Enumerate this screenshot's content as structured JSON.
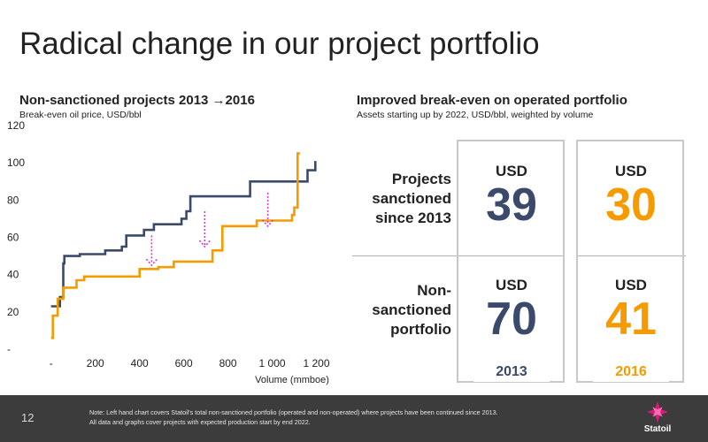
{
  "slide": {
    "title": "Radical change in our project portfolio",
    "page_number": "12"
  },
  "left_panel": {
    "heading": "Non-sanctioned projects 2013 →2016",
    "caption": "Break-even oil price, USD/bbl"
  },
  "right_panel": {
    "heading": "Improved break-even on operated portfolio",
    "caption": "Assets starting up by 2022, USD/bbl, weighted by volume",
    "rows": [
      {
        "label_lines": [
          "Projects",
          "sanctioned",
          "since 2013"
        ]
      },
      {
        "label_lines": [
          "Non-",
          "sanctioned",
          "portfolio"
        ]
      }
    ],
    "columns": [
      {
        "year": "2013",
        "color": "#3b4a6b",
        "values": [
          {
            "unit": "USD",
            "value": "39"
          },
          {
            "unit": "USD",
            "value": "70"
          }
        ]
      },
      {
        "year": "2016",
        "color": "#f59b00",
        "values": [
          {
            "unit": "USD",
            "value": "30"
          },
          {
            "unit": "USD",
            "value": "41"
          }
        ]
      }
    ]
  },
  "chart_data": {
    "type": "line",
    "step": true,
    "xlabel": "Volume (mmboe)",
    "ylabel": "",
    "xlim": [
      -55,
      1290
    ],
    "ylim": [
      0,
      120
    ],
    "x_ticks": [
      {
        "value": 0,
        "label": "-"
      },
      {
        "value": 200,
        "label": "200"
      },
      {
        "value": 400,
        "label": "400"
      },
      {
        "value": 600,
        "label": "600"
      },
      {
        "value": 800,
        "label": "800"
      },
      {
        "value": 1000,
        "label": "1 000"
      },
      {
        "value": 1200,
        "label": "1 200"
      }
    ],
    "y_ticks": [
      {
        "value": 0,
        "label": "-"
      },
      {
        "value": 20,
        "label": "20"
      },
      {
        "value": 40,
        "label": "40"
      },
      {
        "value": 60,
        "label": "60"
      },
      {
        "value": 80,
        "label": "80"
      },
      {
        "value": 100,
        "label": "100"
      },
      {
        "value": 120,
        "label": "120"
      }
    ],
    "grid": false,
    "legend": "none",
    "series": [
      {
        "color": "#3b4a6b",
        "points": [
          [
            0,
            23
          ],
          [
            40,
            23
          ],
          [
            40,
            28
          ],
          [
            55,
            28
          ],
          [
            55,
            46
          ],
          [
            60,
            46
          ],
          [
            60,
            50
          ],
          [
            130,
            50
          ],
          [
            130,
            51
          ],
          [
            245,
            51
          ],
          [
            245,
            53
          ],
          [
            320,
            53
          ],
          [
            320,
            55
          ],
          [
            340,
            55
          ],
          [
            340,
            61
          ],
          [
            420,
            61
          ],
          [
            420,
            64
          ],
          [
            465,
            64
          ],
          [
            465,
            67
          ],
          [
            590,
            67
          ],
          [
            590,
            70
          ],
          [
            612,
            70
          ],
          [
            612,
            74
          ],
          [
            630,
            74
          ],
          [
            630,
            82
          ],
          [
            900,
            82
          ],
          [
            900,
            90
          ],
          [
            1160,
            90
          ],
          [
            1160,
            96
          ],
          [
            1195,
            96
          ],
          [
            1195,
            101
          ]
        ]
      },
      {
        "color": "#f59b00",
        "points": [
          [
            0,
            6
          ],
          [
            8,
            6
          ],
          [
            8,
            18
          ],
          [
            30,
            18
          ],
          [
            30,
            27
          ],
          [
            55,
            27
          ],
          [
            55,
            33
          ],
          [
            115,
            33
          ],
          [
            115,
            37
          ],
          [
            150,
            37
          ],
          [
            150,
            39
          ],
          [
            400,
            39
          ],
          [
            400,
            43
          ],
          [
            485,
            43
          ],
          [
            485,
            44
          ],
          [
            555,
            44
          ],
          [
            555,
            47
          ],
          [
            730,
            47
          ],
          [
            730,
            53
          ],
          [
            775,
            53
          ],
          [
            775,
            66
          ],
          [
            930,
            66
          ],
          [
            930,
            69
          ],
          [
            1090,
            69
          ],
          [
            1090,
            72
          ],
          [
            1100,
            72
          ],
          [
            1100,
            76
          ],
          [
            1115,
            76
          ],
          [
            1115,
            105
          ],
          [
            1125,
            105
          ]
        ]
      }
    ],
    "annotations": [
      {
        "type": "arrow",
        "x": 455,
        "from": 61,
        "to": 45,
        "color": "#e033c8"
      },
      {
        "type": "arrow",
        "x": 695,
        "from": 74,
        "to": 55,
        "color": "#e033c8"
      },
      {
        "type": "arrow",
        "x": 980,
        "from": 84,
        "to": 66,
        "color": "#e033c8"
      }
    ]
  },
  "footer": {
    "note_lines": [
      "Note: Left hand chart covers Statoil's total non-sanctioned portfolio (operated and non-operated) where projects have been continued since 2013.",
      "All data and graphs cover projects with expected production start by end 2022."
    ],
    "logo_text": "Statoil"
  }
}
